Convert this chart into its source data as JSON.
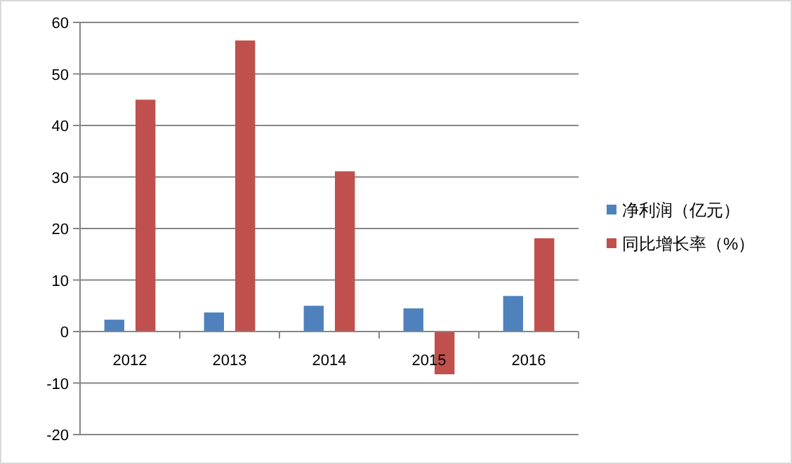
{
  "chart_data": {
    "type": "bar",
    "categories": [
      "2012",
      "2013",
      "2014",
      "2015",
      "2016"
    ],
    "series": [
      {
        "name": "净利润（亿元）",
        "color": "#4f81bd",
        "values": [
          2.3,
          3.7,
          5.0,
          4.5,
          6.9
        ]
      },
      {
        "name": "同比增长率（%）",
        "color": "#c0504d",
        "values": [
          45.0,
          56.5,
          31.1,
          -8.3,
          18.1
        ]
      }
    ],
    "ylim": [
      -20,
      60
    ],
    "yticks": [
      -20,
      -10,
      0,
      10,
      20,
      30,
      40,
      50,
      60
    ],
    "grid": "y",
    "legend": "right"
  }
}
